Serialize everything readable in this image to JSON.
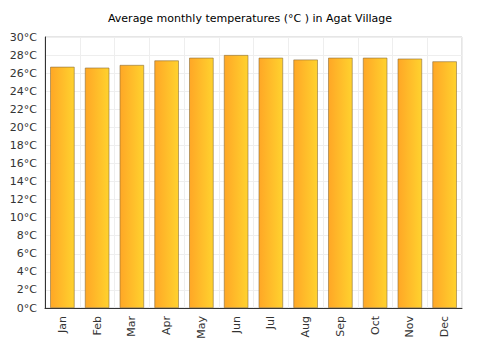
{
  "chart_data": {
    "type": "bar",
    "title": "Average monthly temperatures (°C ) in Agat Village",
    "categories": [
      "Jan",
      "Feb",
      "Mar",
      "Apr",
      "May",
      "Jun",
      "Jul",
      "Aug",
      "Sep",
      "Oct",
      "Nov",
      "Dec"
    ],
    "values": [
      26.7,
      26.6,
      26.9,
      27.4,
      27.7,
      28.0,
      27.7,
      27.5,
      27.7,
      27.7,
      27.6,
      27.3
    ],
    "color": "#ffa726",
    "ylim": [
      0,
      30
    ],
    "yticks": [
      {
        "value": 0,
        "label": "0°C"
      },
      {
        "value": 2,
        "label": "2°C"
      },
      {
        "value": 4,
        "label": "4°C"
      },
      {
        "value": 6,
        "label": "6°C"
      },
      {
        "value": 8,
        "label": "8°C"
      },
      {
        "value": 10,
        "label": "10°C"
      },
      {
        "value": 12,
        "label": "12°C"
      },
      {
        "value": 14,
        "label": "14°C"
      },
      {
        "value": 16,
        "label": "16°C"
      },
      {
        "value": 18,
        "label": "18°C"
      },
      {
        "value": 20,
        "label": "20°C"
      },
      {
        "value": 22,
        "label": "22°C"
      },
      {
        "value": 24,
        "label": "24°C"
      },
      {
        "value": 26,
        "label": "26°C"
      },
      {
        "value": 28,
        "label": "28°C"
      },
      {
        "value": 30,
        "label": "30°C"
      }
    ],
    "grid": true
  }
}
